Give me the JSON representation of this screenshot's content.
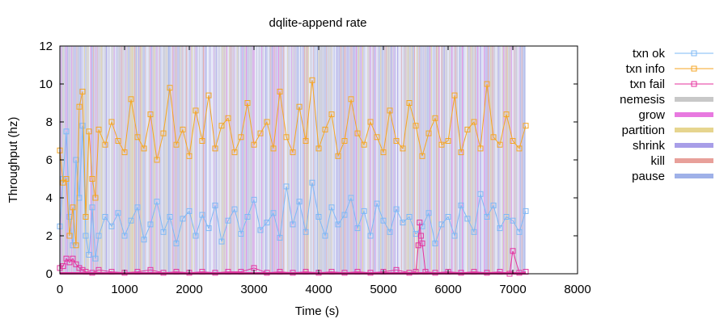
{
  "chart_data": {
    "type": "line",
    "title": "dqlite-append rate",
    "xlabel": "Time (s)",
    "ylabel": "Throughput (hz)",
    "xlim": [
      0,
      8000
    ],
    "ylim": [
      0,
      12
    ],
    "x_ticks": [
      "0",
      "1000",
      "2000",
      "3000",
      "4000",
      "5000",
      "6000",
      "7000",
      "8000"
    ],
    "y_ticks": [
      "0",
      "2",
      "4",
      "6",
      "8",
      "10",
      "12"
    ],
    "grid": false,
    "legend_position": "outside-right",
    "nemesis_window": [
      0,
      7200
    ],
    "series": [
      {
        "name": "txn ok",
        "color": "#7eb8f5",
        "marker": "square",
        "x": [
          0,
          50,
          100,
          150,
          200,
          250,
          300,
          350,
          400,
          450,
          500,
          550,
          600,
          700,
          800,
          900,
          1000,
          1100,
          1200,
          1300,
          1400,
          1500,
          1600,
          1700,
          1800,
          1900,
          2000,
          2100,
          2200,
          2300,
          2400,
          2500,
          2600,
          2700,
          2800,
          2900,
          3000,
          3100,
          3200,
          3300,
          3400,
          3500,
          3600,
          3700,
          3800,
          3900,
          4000,
          4100,
          4200,
          4300,
          4400,
          4500,
          4600,
          4700,
          4800,
          4900,
          5000,
          5100,
          5200,
          5300,
          5400,
          5500,
          5600,
          5700,
          5800,
          5900,
          6000,
          6100,
          6200,
          6300,
          6400,
          6500,
          6600,
          6700,
          6800,
          6900,
          7000,
          7100,
          7200
        ],
        "y": [
          2.5,
          5.0,
          7.5,
          3.0,
          1.5,
          6.0,
          4.0,
          7.8,
          2.0,
          1.0,
          3.5,
          0.8,
          2.0,
          3.0,
          2.5,
          3.2,
          2.0,
          2.8,
          3.5,
          1.8,
          2.6,
          3.8,
          2.2,
          3.0,
          1.6,
          2.9,
          3.3,
          2.0,
          3.1,
          2.4,
          3.6,
          1.7,
          2.8,
          3.4,
          2.1,
          3.0,
          3.9,
          2.3,
          2.7,
          3.2,
          1.9,
          4.6,
          2.6,
          3.8,
          2.2,
          4.8,
          3.0,
          2.0,
          3.5,
          2.6,
          3.1,
          4.0,
          2.4,
          3.3,
          2.0,
          3.7,
          2.8,
          2.2,
          3.4,
          2.7,
          3.0,
          2.1,
          2.5,
          3.2,
          1.6,
          2.6,
          3.0,
          2.0,
          3.6,
          2.9,
          2.2,
          4.2,
          3.0,
          3.6,
          2.4,
          3.0,
          2.8,
          2.2,
          3.3
        ]
      },
      {
        "name": "txn info",
        "color": "#f5a623",
        "marker": "square",
        "x": [
          0,
          50,
          100,
          150,
          200,
          250,
          300,
          350,
          400,
          450,
          500,
          550,
          600,
          700,
          800,
          900,
          1000,
          1100,
          1200,
          1300,
          1400,
          1500,
          1600,
          1700,
          1800,
          1900,
          2000,
          2100,
          2200,
          2300,
          2400,
          2500,
          2600,
          2700,
          2800,
          2900,
          3000,
          3100,
          3200,
          3300,
          3400,
          3500,
          3600,
          3700,
          3800,
          3900,
          4000,
          4100,
          4200,
          4300,
          4400,
          4500,
          4600,
          4700,
          4800,
          4900,
          5000,
          5100,
          5200,
          5300,
          5400,
          5500,
          5600,
          5700,
          5800,
          5900,
          6000,
          6100,
          6200,
          6300,
          6400,
          6500,
          6600,
          6700,
          6800,
          6900,
          7000,
          7100,
          7200
        ],
        "y": [
          6.5,
          4.8,
          5.0,
          2.0,
          3.5,
          1.5,
          8.8,
          9.6,
          3.0,
          7.5,
          5.0,
          4.0,
          7.6,
          6.8,
          8.0,
          7.0,
          6.4,
          9.2,
          7.2,
          6.6,
          8.4,
          6.0,
          7.4,
          9.8,
          6.8,
          7.6,
          6.2,
          8.6,
          7.0,
          9.4,
          6.6,
          7.8,
          8.2,
          6.4,
          7.2,
          9.0,
          6.8,
          7.4,
          8.0,
          6.6,
          9.6,
          7.2,
          6.4,
          8.8,
          7.0,
          10.2,
          6.6,
          7.6,
          8.4,
          6.2,
          7.0,
          9.2,
          7.4,
          6.8,
          8.0,
          7.2,
          6.4,
          8.6,
          7.0,
          6.6,
          9.0,
          7.8,
          6.2,
          7.4,
          8.2,
          6.8,
          7.0,
          9.4,
          6.4,
          7.6,
          8.0,
          6.6,
          10.0,
          7.2,
          6.8,
          8.4,
          7.0,
          6.6,
          7.8
        ]
      },
      {
        "name": "txn fail",
        "color": "#e4319e",
        "marker": "square",
        "x": [
          0,
          50,
          100,
          150,
          200,
          250,
          300,
          350,
          400,
          500,
          600,
          800,
          1000,
          1200,
          1400,
          1600,
          1800,
          2000,
          2200,
          2400,
          2600,
          2800,
          3000,
          3200,
          3400,
          3600,
          3800,
          4000,
          4200,
          4400,
          4600,
          4800,
          5000,
          5200,
          5400,
          5500,
          5540,
          5560,
          5580,
          5600,
          5650,
          5800,
          6000,
          6200,
          6400,
          6600,
          6800,
          6950,
          7000,
          7100,
          7200
        ],
        "y": [
          0.3,
          0.4,
          0.8,
          0.6,
          0.8,
          0.5,
          0.3,
          0.2,
          0.1,
          0.05,
          0.2,
          0.1,
          0.05,
          0.1,
          0.2,
          0.05,
          0.1,
          0.05,
          0.1,
          0.05,
          0.1,
          0.1,
          0.3,
          0.05,
          0.1,
          0.05,
          0.1,
          0.05,
          0.1,
          0.05,
          0.1,
          0.05,
          0.1,
          0.2,
          0.05,
          0.1,
          1.5,
          2.7,
          2.0,
          1.6,
          0.1,
          0.05,
          0.1,
          0.05,
          0.1,
          0.05,
          0.1,
          0.0,
          1.2,
          0.05,
          0.1
        ]
      }
    ],
    "nemesis": [
      {
        "name": "nemesis",
        "color": "#c8c8c8"
      },
      {
        "name": "grow",
        "color": "#e879e0"
      },
      {
        "name": "partition",
        "color": "#e6d58f"
      },
      {
        "name": "shrink",
        "color": "#a89ee8"
      },
      {
        "name": "kill",
        "color": "#e8a09a"
      },
      {
        "name": "pause",
        "color": "#9fb1e8"
      }
    ]
  }
}
